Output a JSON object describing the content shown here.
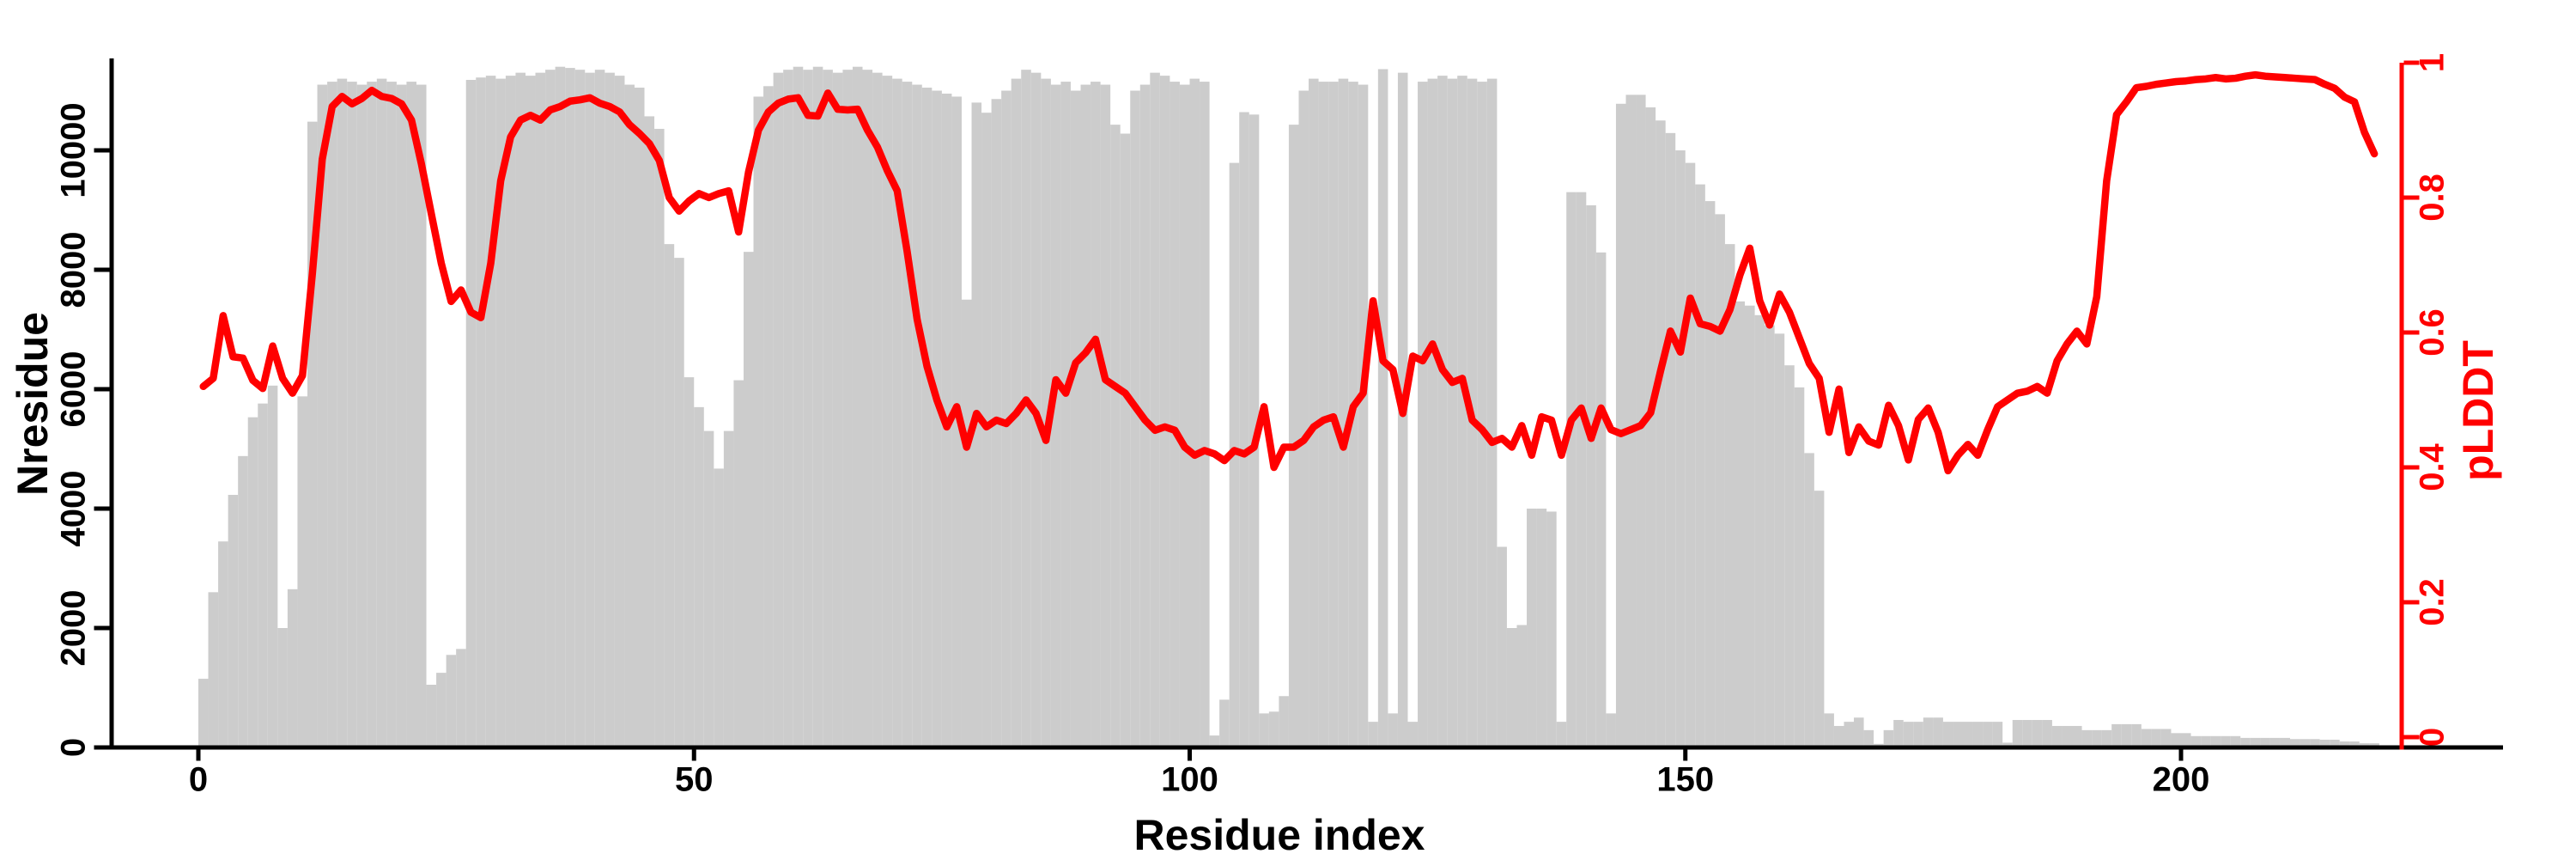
{
  "chart_data": {
    "type": "bar",
    "title": "",
    "xlabel": "Residue index",
    "ylabel_left": "Nresidue",
    "ylabel_right": "pLDDT",
    "legend": [],
    "grid": false,
    "x_ticks": [
      0,
      50,
      100,
      150,
      200
    ],
    "y_ticks_left": [
      0,
      2000,
      4000,
      6000,
      8000,
      10000
    ],
    "y_ticks_right": [
      0,
      0.2,
      0.4,
      0.6,
      0.8,
      1
    ],
    "xlim": [
      -8.75,
      222.25
    ],
    "ylim_left": [
      0,
      11510
    ],
    "ylim_right": [
      0,
      1.0
    ],
    "bar_color": "#cccccc",
    "line_color": "#ff0000",
    "axis_color": "#000000",
    "series": [
      {
        "name": "Nresidue",
        "kind": "bar",
        "axis": "left",
        "x_start": 0,
        "values": [
          1150,
          2600,
          3450,
          4230,
          4880,
          5530,
          5760,
          6060,
          2000,
          2650,
          5880,
          10480,
          11100,
          11150,
          11200,
          11150,
          11100,
          11150,
          11200,
          11150,
          11100,
          11150,
          11100,
          1050,
          1250,
          1550,
          1650,
          11180,
          11220,
          11250,
          11200,
          11250,
          11300,
          11250,
          11300,
          11350,
          11400,
          11380,
          11350,
          11300,
          11350,
          11300,
          11250,
          11100,
          11050,
          10570,
          10360,
          8430,
          8200,
          6200,
          5700,
          5300,
          4670,
          5300,
          6150,
          8300,
          10900,
          11075,
          11300,
          11350,
          11400,
          11350,
          11400,
          11350,
          11300,
          11350,
          11400,
          11350,
          11300,
          11250,
          11200,
          11150,
          11100,
          11050,
          11000,
          10950,
          10900,
          7500,
          10800,
          10630,
          10860,
          11000,
          11200,
          11350,
          11300,
          11200,
          11100,
          11150,
          11000,
          11100,
          11150,
          11100,
          10430,
          10280,
          11000,
          11100,
          11300,
          11250,
          11150,
          11100,
          11200,
          11150,
          200,
          800,
          9790,
          10640,
          10600,
          570,
          600,
          860,
          10430,
          11000,
          11200,
          11150,
          11150,
          11200,
          11150,
          11100,
          430,
          11360,
          570,
          11300,
          430,
          11150,
          11200,
          11250,
          11200,
          11250,
          11200,
          11150,
          11200,
          3360,
          2000,
          2050,
          4000,
          4000,
          3950,
          430,
          9300,
          9300,
          9080,
          8290,
          570,
          10780,
          10930,
          10930,
          10720,
          10500,
          10290,
          10000,
          9790,
          9430,
          9150,
          8930,
          8430,
          7470,
          7400,
          7240,
          7070,
          6930,
          6400,
          6030,
          4930,
          4300,
          570,
          360,
          430,
          500,
          290,
          60,
          290,
          460,
          430,
          430,
          500,
          500,
          430,
          430,
          430,
          430,
          430,
          430,
          80,
          460,
          460,
          460,
          460,
          360,
          360,
          360,
          290,
          290,
          290,
          390,
          390,
          390,
          310,
          310,
          310,
          240,
          240,
          190,
          190,
          190,
          190,
          190,
          160,
          160,
          160,
          160,
          160,
          140,
          140,
          140,
          130,
          130,
          100,
          100,
          70,
          70
        ]
      },
      {
        "name": "pLDDT",
        "kind": "line",
        "axis": "right",
        "x_start": 0,
        "values": [
          0.52,
          0.532,
          0.625,
          0.564,
          0.562,
          0.529,
          0.517,
          0.58,
          0.532,
          0.51,
          0.536,
          0.687,
          0.857,
          0.935,
          0.95,
          0.939,
          0.947,
          0.959,
          0.95,
          0.947,
          0.939,
          0.915,
          0.85,
          0.776,
          0.703,
          0.646,
          0.663,
          0.63,
          0.622,
          0.703,
          0.825,
          0.89,
          0.915,
          0.922,
          0.915,
          0.93,
          0.935,
          0.943,
          0.945,
          0.948,
          0.94,
          0.935,
          0.927,
          0.908,
          0.895,
          0.88,
          0.855,
          0.8,
          0.78,
          0.795,
          0.806,
          0.8,
          0.806,
          0.81,
          0.749,
          0.838,
          0.9,
          0.927,
          0.94,
          0.946,
          0.948,
          0.922,
          0.921,
          0.955,
          0.931,
          0.93,
          0.931,
          0.9,
          0.875,
          0.84,
          0.81,
          0.72,
          0.62,
          0.55,
          0.5,
          0.46,
          0.49,
          0.43,
          0.48,
          0.46,
          0.47,
          0.465,
          0.48,
          0.5,
          0.48,
          0.44,
          0.53,
          0.51,
          0.555,
          0.57,
          0.59,
          0.53,
          0.52,
          0.51,
          0.49,
          0.47,
          0.455,
          0.46,
          0.455,
          0.43,
          0.418,
          0.425,
          0.42,
          0.41,
          0.425,
          0.42,
          0.43,
          0.49,
          0.4,
          0.43,
          0.43,
          0.44,
          0.46,
          0.47,
          0.475,
          0.43,
          0.49,
          0.51,
          0.647,
          0.558,
          0.545,
          0.48,
          0.565,
          0.558,
          0.583,
          0.545,
          0.526,
          0.532,
          0.47,
          0.456,
          0.437,
          0.443,
          0.43,
          0.462,
          0.418,
          0.475,
          0.47,
          0.418,
          0.47,
          0.488,
          0.443,
          0.488,
          0.456,
          0.45,
          0.456,
          0.462,
          0.481,
          0.543,
          0.602,
          0.571,
          0.651,
          0.613,
          0.609,
          0.602,
          0.634,
          0.685,
          0.725,
          0.647,
          0.611,
          0.657,
          0.63,
          0.592,
          0.554,
          0.532,
          0.452,
          0.516,
          0.422,
          0.46,
          0.439,
          0.433,
          0.492,
          0.462,
          0.411,
          0.471,
          0.488,
          0.452,
          0.395,
          0.418,
          0.434,
          0.418,
          0.456,
          0.49,
          0.5,
          0.51,
          0.513,
          0.52,
          0.51,
          0.558,
          0.583,
          0.602,
          0.583,
          0.653,
          0.825,
          0.923,
          0.942,
          0.963,
          0.965,
          0.968,
          0.97,
          0.972,
          0.973,
          0.975,
          0.976,
          0.978,
          0.976,
          0.977,
          0.98,
          0.982,
          0.98,
          0.979,
          0.978,
          0.977,
          0.976,
          0.975,
          0.968,
          0.962,
          0.949,
          0.942,
          0.897,
          0.865
        ]
      }
    ]
  }
}
